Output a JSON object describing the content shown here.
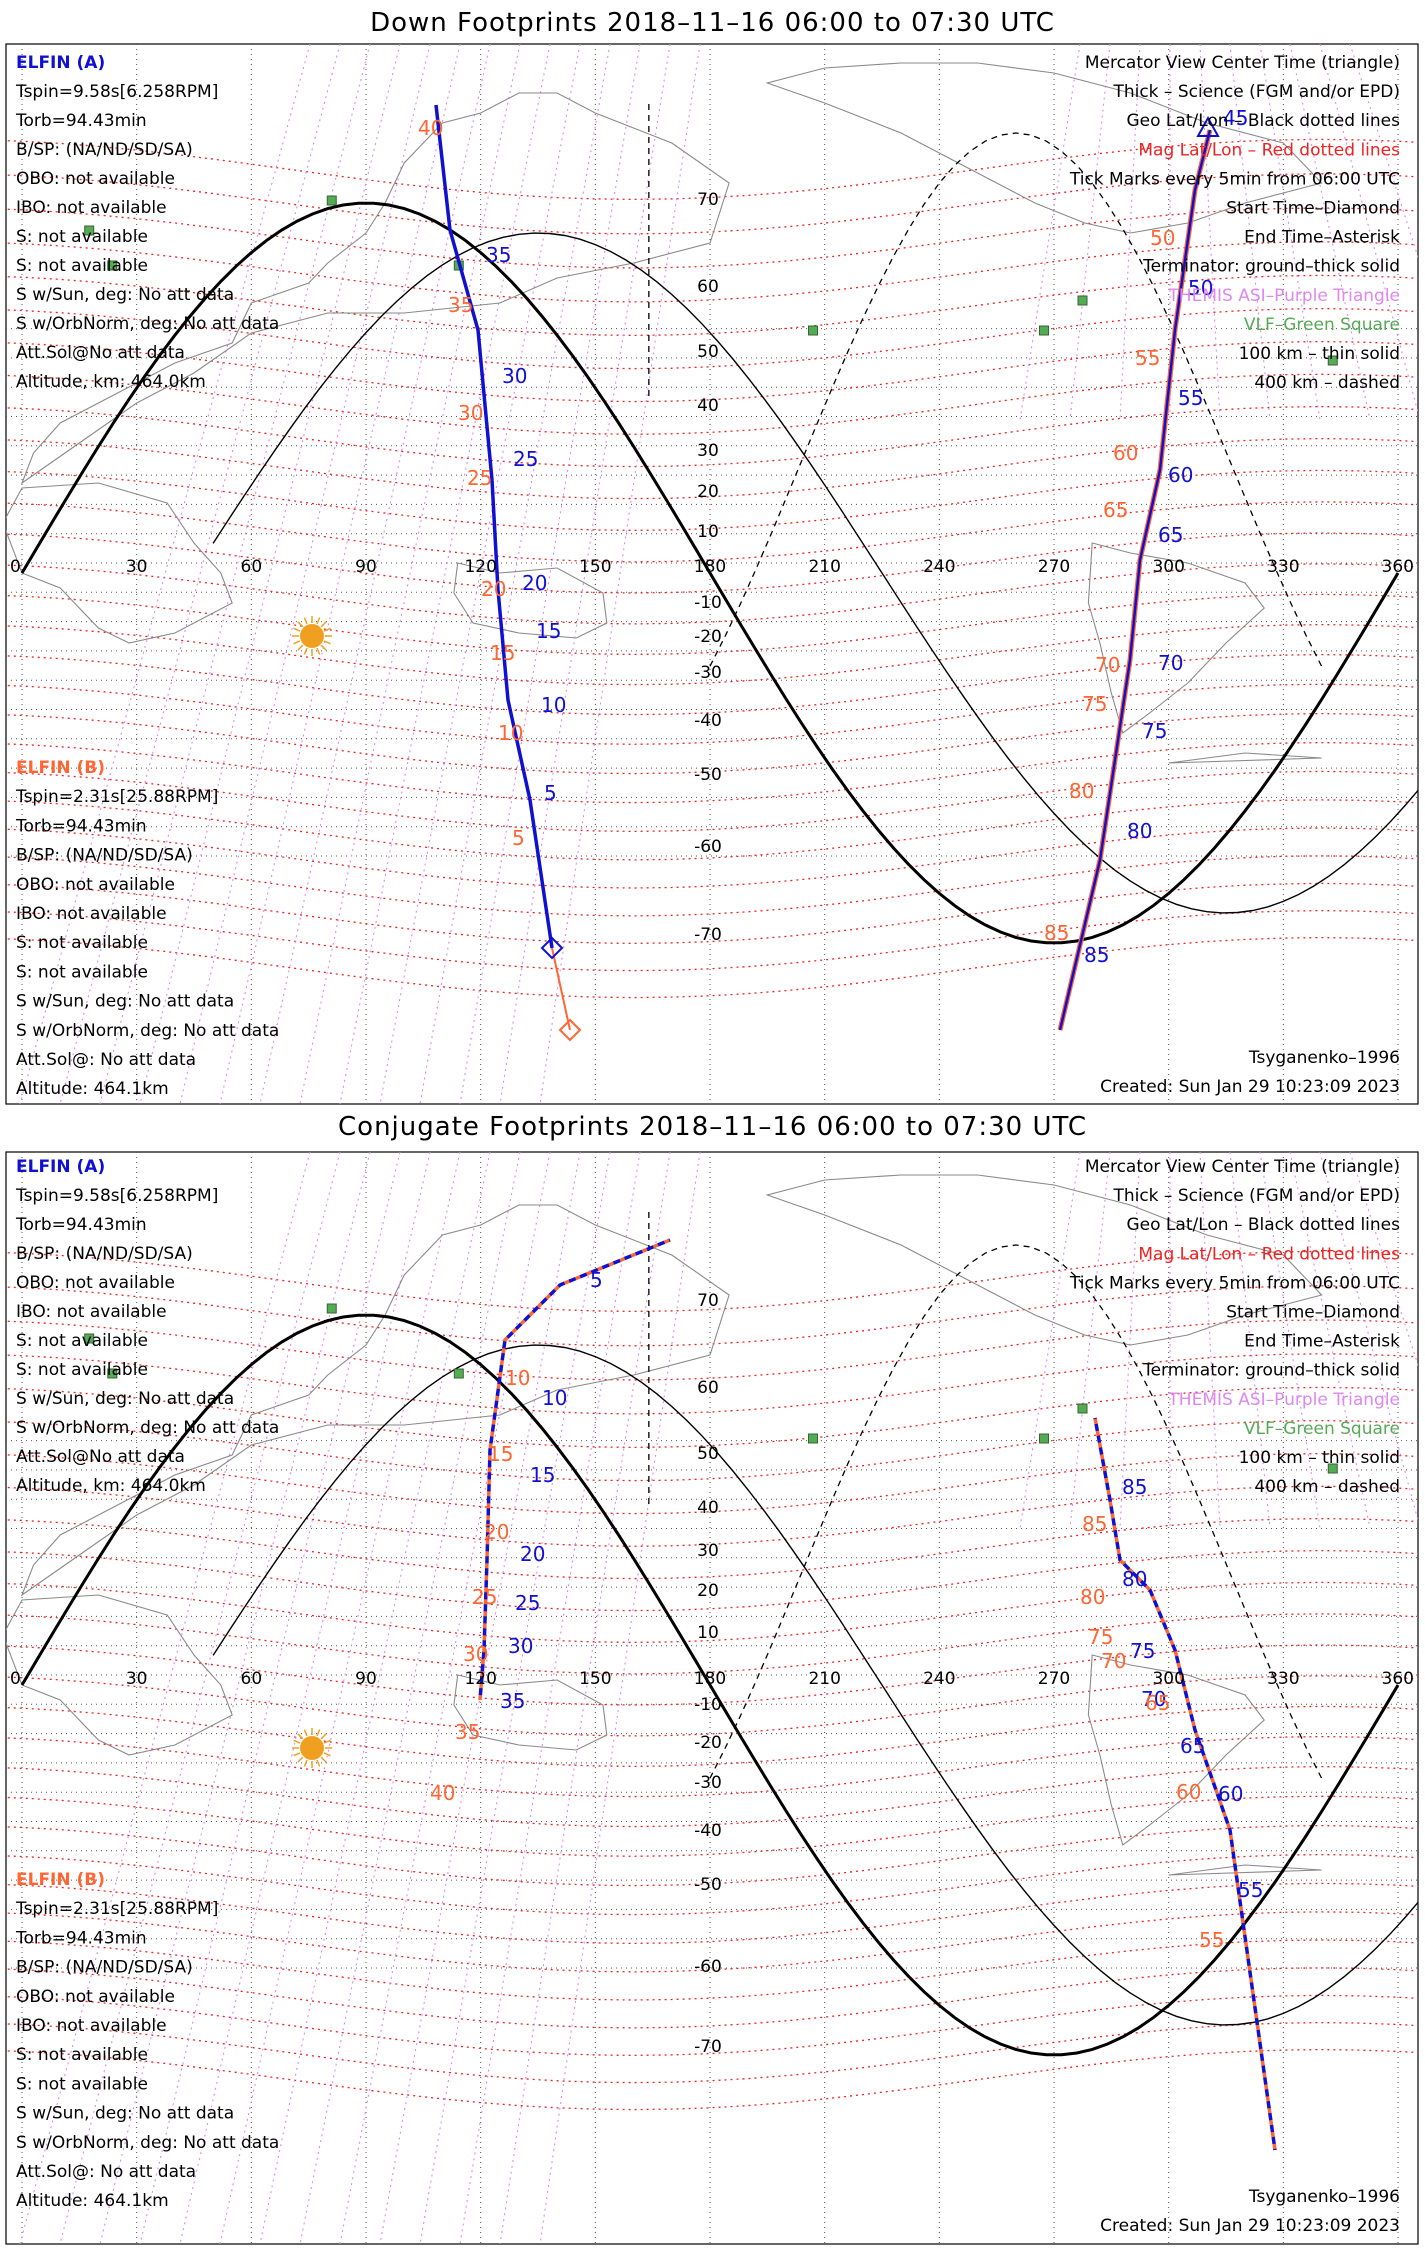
{
  "panels": [
    {
      "title": "Down Footprints 2018–11–16 06:00 to 07:30 UTC",
      "conjugate": false,
      "left_info": {
        "a_header": "ELFIN (A)",
        "a_lines": [
          "Tspin=9.58s[6.258RPM]",
          "Torb=94.43min",
          "B/SP: (NA/ND/SD/SA)",
          "OBO: not available",
          "IBO: not available",
          "S: not available",
          "S: not available",
          "S w/Sun, deg: No att data",
          "S w/OrbNorm, deg: No att data",
          "Att.Sol@No att data",
          "Altitude, km: 464.0km"
        ],
        "b_header": "ELFIN (B)",
        "b_lines": [
          "Tspin=2.31s[25.88RPM]",
          "Torb=94.43min",
          "B/SP: (NA/ND/SD/SA)",
          "OBO: not available",
          "IBO: not available",
          "S: not available",
          "S: not available",
          "S w/Sun, deg: No att data",
          "S w/OrbNorm, deg: No att data",
          "Att.Sol@: No att data",
          "Altitude: 464.1km"
        ]
      },
      "legend": [
        "Mercator View Center Time (triangle)",
        "Thick – Science (FGM and/or EPD)",
        "Geo Lat/Lon – Black dotted lines",
        "Mag Lat/Lon – Red dotted lines",
        "Tick Marks every 5min from 06:00 UTC",
        "Start Time–Diamond",
        "End Time–Asterisk",
        "Terminator: ground–thick solid",
        "THEMIS ASI–Purple Triangle",
        "VLF–Green Square",
        "100 km – thin solid",
        "400 km – dashed"
      ],
      "model": "Tsyganenko–1996",
      "created": "Created: Sun Jan 29 10:23:09 2023",
      "tracks": {
        "a_ticks": [
          "35",
          "30",
          "25",
          "20",
          "15",
          "10",
          "5",
          "45",
          "50",
          "55",
          "60",
          "65",
          "70",
          "75",
          "80",
          "85"
        ],
        "b_ticks": [
          "40",
          "35",
          "30",
          "25",
          "20",
          "15",
          "10",
          "5",
          "50",
          "55",
          "60",
          "65",
          "70",
          "75",
          "80",
          "85"
        ]
      }
    },
    {
      "title": "Conjugate Footprints 2018–11–16 06:00 to 07:30 UTC",
      "conjugate": true,
      "left_info": {
        "a_header": "ELFIN (A)",
        "a_lines": [
          "Tspin=9.58s[6.258RPM]",
          "Torb=94.43min",
          "B/SP: (NA/ND/SD/SA)",
          "OBO: not available",
          "IBO: not available",
          "S: not available",
          "S: not available",
          "S w/Sun, deg: No att data",
          "S w/OrbNorm, deg: No att data",
          "Att.Sol@No att data",
          "Altitude, km: 464.0km"
        ],
        "b_header": "ELFIN (B)",
        "b_lines": [
          "Tspin=2.31s[25.88RPM]",
          "Torb=94.43min",
          "B/SP: (NA/ND/SD/SA)",
          "OBO: not available",
          "IBO: not available",
          "S: not available",
          "S: not available",
          "S w/Sun, deg: No att data",
          "S w/OrbNorm, deg: No att data",
          "Att.Sol@: No att data",
          "Altitude: 464.1km"
        ]
      },
      "legend": [
        "Mercator View Center Time (triangle)",
        "Thick – Science (FGM and/or EPD)",
        "Geo Lat/Lon – Black dotted lines",
        "Mag Lat/Lon – Red dotted lines",
        "Tick Marks every 5min from 06:00 UTC",
        "Start Time–Diamond",
        "End Time–Asterisk",
        "Terminator: ground–thick solid",
        "THEMIS ASI–Purple Triangle",
        "VLF–Green Square",
        "100 km – thin solid",
        "400 km – dashed"
      ],
      "model": "Tsyganenko–1996",
      "created": "Created: Sun Jan 29 10:23:09 2023",
      "tracks": {
        "a_ticks": [
          "5",
          "10",
          "15",
          "20",
          "25",
          "30",
          "35",
          "85",
          "80",
          "75",
          "70",
          "65",
          "60",
          "55"
        ],
        "b_ticks": [
          "10",
          "15",
          "20",
          "25",
          "30",
          "35",
          "40",
          "85",
          "80",
          "75",
          "70",
          "65",
          "60",
          "55"
        ]
      }
    }
  ],
  "axes": {
    "lon_labels": [
      "0",
      "30",
      "60",
      "90",
      "120",
      "150",
      "180",
      "210",
      "240",
      "270",
      "300",
      "330",
      "360"
    ],
    "lat_labels": [
      "70",
      "60",
      "50",
      "40",
      "30",
      "20",
      "10",
      "-10",
      "-20",
      "-30",
      "-40",
      "-50",
      "-60",
      "-70"
    ]
  },
  "colors": {
    "elfin_a": "#1010d0",
    "elfin_b": "#ff6633",
    "mag_grid": "#ee2222",
    "themis": "#dd88ee",
    "vlf": "#55aa55",
    "sun": "#f0a020"
  }
}
